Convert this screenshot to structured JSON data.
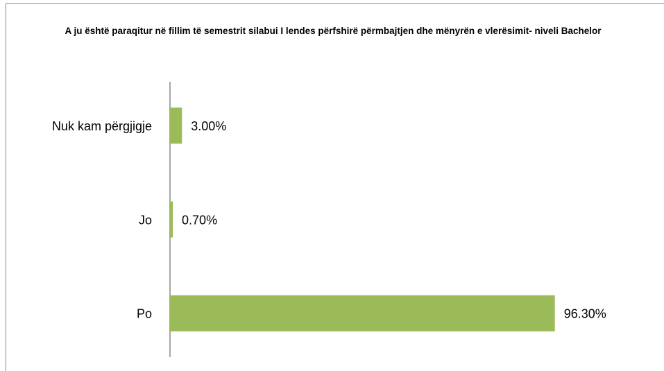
{
  "chart_data": {
    "type": "bar",
    "orientation": "horizontal",
    "title": "A ju është paraqitur në fillim të semestrit silabui I lendes përfshirë përmbajtjen dhe mënyrën e vlerësimit- niveli Bachelor",
    "categories": [
      "Nuk kam përgjigje",
      "Jo",
      "Po"
    ],
    "values": [
      3,
      0.7,
      96.3
    ],
    "value_labels": [
      "3.00%",
      "0.70%",
      "96.30%"
    ],
    "color": "#9bbb59",
    "xlim": [
      0,
      100
    ]
  }
}
